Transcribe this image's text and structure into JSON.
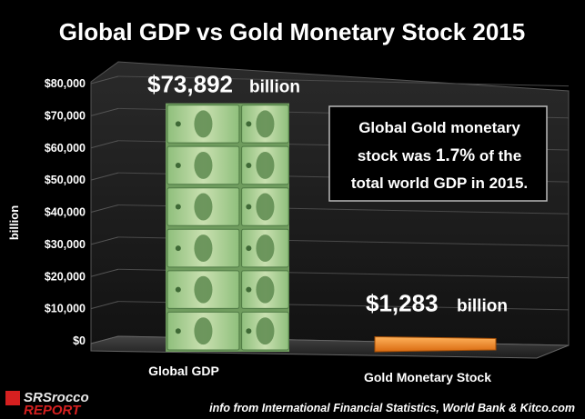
{
  "chart_data": {
    "type": "bar",
    "title": "Global GDP vs Gold Monetary Stock 2015",
    "ylabel": "billion",
    "xlabel": "",
    "ylim": [
      0,
      80000
    ],
    "yticks": [
      "$0",
      "$10,000",
      "$20,000",
      "$30,000",
      "$40,000",
      "$50,000",
      "$60,000",
      "$70,000",
      "$80,000"
    ],
    "grid": true,
    "categories": [
      "Global GDP",
      "Gold Monetary Stock"
    ],
    "values": [
      73892,
      1283
    ],
    "data_labels": [
      {
        "value": "$73,892",
        "unit": "billion"
      },
      {
        "value": "$1,283",
        "unit": "billion"
      }
    ],
    "bar_styles": [
      "stacked-dollar-bills",
      "orange"
    ],
    "annotation": {
      "line1": "Global Gold monetary",
      "line2_pre": "stock was ",
      "line2_highlight": "1.7%",
      "line2_post": " of the",
      "line3": "total world GDP in 2015."
    },
    "source": "info from International Financial Statistics,  World Bank & Kitco.com",
    "logo": {
      "part1": "SRSrocco",
      "part2": "REPORT"
    }
  },
  "colors": {
    "background": "#000000",
    "panel": "#1a1a1a",
    "bill_green": "#9cc48a",
    "gold_bar": "#f08a2a"
  }
}
